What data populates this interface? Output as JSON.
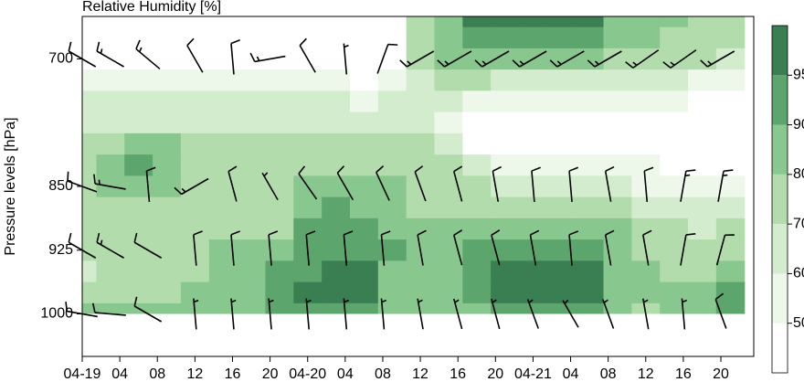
{
  "chart_data": {
    "type": "contour",
    "title": "Relative Humidity [%]",
    "y_label": "Pressure levels [hPa]",
    "x": [
      0,
      3,
      6,
      9,
      12,
      15,
      18,
      21,
      24,
      27,
      30,
      33,
      36,
      39,
      42,
      45,
      48,
      51,
      54,
      57,
      60,
      63,
      66,
      69
    ],
    "pressure": [
      650,
      675,
      700,
      725,
      750,
      775,
      800,
      825,
      850,
      875,
      900,
      925,
      950,
      975,
      1000
    ],
    "z": [
      [
        45,
        45,
        45,
        45,
        45,
        45,
        45,
        45,
        45,
        45,
        45,
        45,
        75,
        88,
        96,
        96,
        96,
        96,
        96,
        88,
        82,
        80,
        78,
        76
      ],
      [
        45,
        45,
        45,
        45,
        45,
        45,
        45,
        45,
        45,
        45,
        45,
        45,
        75,
        84,
        90,
        92,
        92,
        92,
        90,
        85,
        80,
        78,
        76,
        75
      ],
      [
        48,
        48,
        48,
        48,
        48,
        48,
        48,
        48,
        48,
        48,
        45,
        45,
        72,
        80,
        82,
        82,
        82,
        82,
        80,
        78,
        75,
        72,
        70,
        68
      ],
      [
        55,
        55,
        55,
        55,
        55,
        55,
        55,
        55,
        55,
        55,
        48,
        50,
        66,
        72,
        70,
        68,
        68,
        68,
        66,
        64,
        62,
        60,
        58,
        58
      ],
      [
        62,
        62,
        62,
        62,
        62,
        62,
        62,
        62,
        62,
        62,
        58,
        60,
        62,
        62,
        55,
        52,
        50,
        50,
        50,
        50,
        50,
        50,
        48,
        48
      ],
      [
        68,
        68,
        68,
        68,
        68,
        68,
        68,
        68,
        68,
        68,
        66,
        66,
        66,
        55,
        45,
        45,
        45,
        45,
        45,
        45,
        45,
        45,
        45,
        45
      ],
      [
        72,
        75,
        82,
        80,
        74,
        74,
        74,
        74,
        74,
        74,
        74,
        72,
        72,
        60,
        48,
        45,
        45,
        45,
        45,
        45,
        45,
        45,
        45,
        45
      ],
      [
        78,
        85,
        92,
        88,
        76,
        76,
        76,
        76,
        78,
        78,
        78,
        76,
        76,
        70,
        62,
        58,
        56,
        56,
        55,
        52,
        50,
        48,
        48,
        48
      ],
      [
        78,
        82,
        88,
        80,
        76,
        76,
        76,
        76,
        80,
        80,
        80,
        80,
        78,
        76,
        72,
        68,
        66,
        66,
        65,
        62,
        58,
        55,
        55,
        58
      ],
      [
        75,
        75,
        75,
        75,
        76,
        76,
        76,
        76,
        86,
        92,
        88,
        82,
        78,
        78,
        76,
        75,
        74,
        74,
        72,
        70,
        66,
        62,
        62,
        65
      ],
      [
        75,
        75,
        75,
        75,
        78,
        78,
        78,
        78,
        91,
        92,
        91,
        86,
        80,
        80,
        84,
        86,
        88,
        88,
        84,
        80,
        74,
        70,
        68,
        70
      ],
      [
        72,
        72,
        72,
        72,
        78,
        80,
        84,
        88,
        92,
        93,
        92,
        90,
        80,
        84,
        90,
        92,
        92,
        92,
        91,
        86,
        78,
        74,
        72,
        78
      ],
      [
        65,
        72,
        72,
        72,
        78,
        82,
        86,
        90,
        94,
        96,
        95,
        88,
        82,
        88,
        92,
        96,
        96,
        96,
        95,
        88,
        80,
        78,
        78,
        86
      ],
      [
        78,
        78,
        78,
        78,
        80,
        84,
        88,
        91,
        96,
        97,
        96,
        86,
        85,
        88,
        93,
        96,
        97,
        97,
        95,
        88,
        80,
        80,
        84,
        92
      ],
      [
        82,
        82,
        82,
        82,
        80,
        84,
        88,
        90,
        92,
        92,
        90,
        84,
        84,
        86,
        88,
        90,
        90,
        90,
        90,
        84,
        78,
        82,
        86,
        92
      ]
    ],
    "xlim": [
      0,
      71.5
    ],
    "ylim": [
      1050,
      650
    ],
    "yticks": [
      700,
      850,
      925,
      1000
    ],
    "xticks": [
      {
        "value": 0,
        "label": "04-19"
      },
      {
        "value": 4,
        "label": "04"
      },
      {
        "value": 8,
        "label": "08"
      },
      {
        "value": 12,
        "label": "12"
      },
      {
        "value": 16,
        "label": "16"
      },
      {
        "value": 20,
        "label": "20"
      },
      {
        "value": 24,
        "label": "04-20"
      },
      {
        "value": 28,
        "label": "04"
      },
      {
        "value": 32,
        "label": "08"
      },
      {
        "value": 36,
        "label": "12"
      },
      {
        "value": 40,
        "label": "16"
      },
      {
        "value": 44,
        "label": "20"
      },
      {
        "value": 48,
        "label": "04-21"
      },
      {
        "value": 52,
        "label": "04"
      },
      {
        "value": 56,
        "label": "08"
      },
      {
        "value": 60,
        "label": "12"
      },
      {
        "value": 64,
        "label": "16"
      },
      {
        "value": 68,
        "label": "20"
      }
    ],
    "levels": [
      50,
      60,
      70,
      80,
      90,
      95
    ],
    "colors": [
      "#ffffff",
      "#edf8ea",
      "#d3ecce",
      "#b2dcac",
      "#88c78e",
      "#5ca56c",
      "#3a7f52"
    ],
    "barbs": {
      "x": [
        0,
        3,
        7,
        12,
        16,
        20,
        24,
        28,
        32,
        36,
        40,
        44,
        48,
        52,
        56,
        60,
        64,
        68
      ],
      "levels": [
        700,
        850,
        925,
        1000
      ],
      "direction": [
        [
          300,
          300,
          310,
          330,
          355,
          260,
          330,
          355,
          20,
          240,
          240,
          240,
          240,
          240,
          240,
          235,
          235,
          240
        ],
        [
          290,
          280,
          355,
          240,
          345,
          330,
          325,
          330,
          335,
          340,
          345,
          350,
          355,
          355,
          350,
          355,
          10,
          10
        ],
        [
          300,
          300,
          300,
          355,
          355,
          355,
          355,
          355,
          355,
          350,
          345,
          345,
          350,
          355,
          350,
          350,
          10,
          15
        ],
        [
          280,
          275,
          300,
          355,
          355,
          355,
          355,
          355,
          355,
          350,
          345,
          345,
          340,
          330,
          340,
          350,
          355,
          340
        ]
      ],
      "speed": [
        [
          10,
          15,
          15,
          10,
          10,
          15,
          10,
          5,
          10,
          15,
          15,
          15,
          15,
          15,
          15,
          15,
          15,
          15
        ],
        [
          10,
          15,
          10,
          15,
          10,
          5,
          10,
          10,
          10,
          10,
          10,
          10,
          10,
          10,
          10,
          10,
          15,
          15
        ],
        [
          10,
          15,
          10,
          10,
          10,
          10,
          10,
          10,
          10,
          10,
          10,
          10,
          10,
          10,
          10,
          10,
          10,
          10
        ],
        [
          10,
          10,
          10,
          5,
          5,
          5,
          5,
          5,
          5,
          5,
          5,
          5,
          5,
          5,
          5,
          5,
          5,
          10
        ]
      ]
    }
  }
}
